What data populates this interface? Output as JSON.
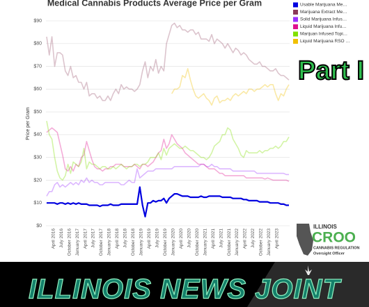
{
  "chart_data": {
    "type": "line",
    "title": "Medical Cannabis Products Average Price per Gram",
    "y_label": "Price per Gram",
    "categories": [
      null,
      null,
      "April 2016",
      null,
      null,
      "July 2016",
      null,
      null,
      "October 2016",
      null,
      null,
      "January 2017",
      null,
      null,
      "April 2017",
      null,
      null,
      "July 2017",
      null,
      null,
      "October 2017",
      null,
      null,
      "January 2018",
      null,
      null,
      "April 2018",
      null,
      null,
      "July 2018",
      null,
      null,
      "October 2018",
      null,
      null,
      "January 2019",
      null,
      null,
      "April 2019",
      null,
      null,
      "July 2019",
      null,
      null,
      "October 2019",
      null,
      null,
      "January 2020",
      null,
      null,
      "April 2020",
      null,
      null,
      "July 2020",
      null,
      null,
      "October 2020",
      null,
      null,
      "January 2021",
      null,
      null,
      "April 2021",
      null,
      null,
      "July 2021",
      null,
      null,
      "October 2021",
      null,
      null,
      "January 2022",
      null,
      null,
      "April 2022",
      null,
      null,
      "July 2022",
      null,
      null,
      "October 2022",
      null,
      null,
      "January 2023",
      null,
      null,
      "April 2023",
      null,
      null,
      null,
      null,
      null
    ],
    "series": [
      {
        "name": "Usable Marijuana Me…",
        "color": "#0000e0",
        "line_opacity": 1,
        "values": [
          10,
          10,
          10,
          10,
          9.5,
          10,
          10,
          9.5,
          10,
          9.5,
          10,
          9.5,
          10,
          9.5,
          9.5,
          9.5,
          9,
          9,
          9,
          9,
          8.5,
          9,
          9,
          9,
          9.5,
          9,
          9,
          9,
          9.5,
          9.5,
          9.5,
          9.5,
          9.5,
          9.5,
          9.5,
          17,
          9,
          4,
          10,
          10,
          11,
          10.5,
          11,
          11,
          12,
          10,
          12,
          13,
          14,
          14,
          13.5,
          13,
          13,
          13,
          12.5,
          12.5,
          12.5,
          12.5,
          13,
          12.5,
          12.5,
          13,
          13,
          13,
          13,
          13,
          12.5,
          12.5,
          12.5,
          12.5,
          12,
          12,
          12,
          12,
          11.5,
          11.5,
          11,
          11,
          11,
          11,
          10.5,
          10.5,
          10.5,
          10.5,
          10,
          10,
          10,
          10,
          9.5,
          9.5,
          9,
          9
        ]
      },
      {
        "name": "Marijuana Extract Me…",
        "color": "#8b3a5a",
        "line_opacity": 0.3,
        "values": [
          83,
          75,
          83,
          70,
          76,
          76,
          75,
          68,
          66,
          70,
          65,
          66,
          63,
          63,
          60,
          63,
          57,
          58,
          58,
          56,
          57,
          55,
          55,
          57,
          55,
          58,
          60,
          58,
          62,
          60,
          61,
          60,
          60,
          59,
          60,
          62,
          68,
          72,
          65,
          70,
          68,
          73,
          67,
          70,
          68,
          80,
          84,
          88,
          89,
          87,
          88,
          86,
          86,
          85,
          86,
          86,
          84,
          85,
          82,
          82,
          82,
          81,
          84,
          80,
          82,
          81,
          80,
          78,
          80,
          78,
          76,
          78,
          77,
          75,
          76,
          75,
          73,
          72,
          71,
          71,
          72,
          70,
          70,
          69,
          68,
          68,
          69,
          67,
          66,
          66,
          65,
          64
        ]
      },
      {
        "name": "Solid Marijuana Infus…",
        "color": "#9b30ff",
        "line_opacity": 0.35,
        "values": [
          13,
          15,
          15,
          18,
          19,
          17,
          18,
          17,
          18,
          19,
          18,
          19,
          18,
          20,
          19,
          21,
          19,
          20,
          19,
          19,
          18,
          18,
          19,
          19,
          19,
          19,
          19,
          19,
          18,
          18,
          19,
          20,
          19,
          19,
          25,
          21,
          22,
          23,
          24,
          24,
          24,
          25,
          25,
          25,
          25,
          25,
          25,
          25,
          26,
          26,
          26,
          26,
          26,
          26,
          26,
          26,
          26,
          26,
          27,
          27,
          26,
          26,
          27,
          26,
          26,
          25,
          25,
          25,
          25,
          25,
          24,
          24,
          24,
          24,
          24,
          24,
          24,
          24,
          24,
          23,
          23,
          23,
          23,
          23,
          23,
          23,
          23,
          23,
          23,
          23,
          22.5,
          22.5
        ]
      },
      {
        "name": "Liquid Marijuana Infu…",
        "color": "#e01090",
        "line_opacity": 0.35,
        "values": [
          41,
          42,
          43,
          42,
          41,
          36,
          31,
          25,
          24,
          26,
          24,
          27,
          26,
          30,
          31,
          37,
          33,
          29,
          26,
          25,
          25,
          24,
          25,
          25,
          26,
          26,
          27,
          27,
          27,
          26,
          26,
          26,
          26,
          27,
          26,
          25,
          27,
          27,
          26,
          27,
          28,
          30,
          32,
          33,
          38,
          34,
          36,
          40,
          38,
          36,
          35,
          34,
          32,
          31,
          30,
          29,
          28,
          27,
          27,
          27,
          26,
          25,
          25,
          25,
          24,
          23,
          23,
          22,
          22,
          22,
          22,
          22,
          22,
          22,
          22,
          21,
          21,
          21,
          21,
          21,
          21,
          21,
          20.5,
          21,
          20.5,
          20,
          20,
          20,
          20,
          20,
          20,
          19.5
        ]
      },
      {
        "name": "Marijuan Infused Topi…",
        "color": "#80e000",
        "line_opacity": 0.35,
        "values": [
          46,
          40,
          38,
          30,
          24,
          21,
          20,
          22,
          27,
          23,
          28,
          27,
          26,
          28,
          34,
          25,
          28,
          27,
          27,
          26,
          25,
          26,
          26,
          25,
          25,
          26,
          25,
          26,
          27,
          26,
          25,
          26,
          26,
          27,
          27,
          26,
          27,
          27,
          28,
          30,
          30,
          30,
          32,
          29,
          34,
          31,
          34,
          35,
          36,
          35,
          34,
          34,
          35,
          34,
          33,
          33,
          32,
          31,
          30,
          30,
          29,
          30,
          32,
          35,
          36,
          37,
          40,
          40,
          43,
          42,
          38,
          36,
          34,
          31,
          30,
          33,
          32,
          32,
          32,
          32,
          33,
          32,
          33,
          33,
          34,
          34,
          35,
          34,
          35,
          37,
          37,
          39
        ]
      },
      {
        "name": "Liquid Marijuana RSO …",
        "color": "#f0c000",
        "line_opacity": 0.35,
        "values": [
          null,
          null,
          null,
          null,
          null,
          null,
          null,
          null,
          null,
          null,
          null,
          null,
          null,
          null,
          null,
          null,
          null,
          null,
          null,
          null,
          null,
          null,
          null,
          null,
          null,
          null,
          null,
          null,
          null,
          null,
          null,
          null,
          null,
          null,
          null,
          null,
          null,
          null,
          null,
          null,
          null,
          null,
          null,
          null,
          null,
          null,
          null,
          58,
          60,
          60,
          61,
          66,
          65,
          69,
          64,
          60,
          57,
          56,
          57,
          58,
          56,
          55,
          53,
          56,
          57,
          54,
          55,
          55,
          56,
          55,
          57,
          58,
          57,
          58,
          59,
          58,
          60,
          60,
          59,
          60,
          60,
          61,
          62,
          61,
          62,
          62,
          58,
          55,
          58,
          57,
          60,
          62
        ]
      }
    ],
    "ylim": [
      0,
      90
    ],
    "yticks": [
      {
        "value": 0,
        "label": "$0"
      },
      {
        "value": 10,
        "label": "$10"
      },
      {
        "value": 20,
        "label": "$20"
      },
      {
        "value": 30,
        "label": "$30"
      },
      {
        "value": 40,
        "label": "$40"
      },
      {
        "value": 50,
        "label": "$50"
      },
      {
        "value": 60,
        "label": "$60"
      },
      {
        "value": 70,
        "label": "$70"
      },
      {
        "value": 80,
        "label": "$80"
      },
      {
        "value": 90,
        "label": "$90"
      }
    ],
    "grid": true,
    "legend": "top-right"
  },
  "overlay": {
    "part": "Part I",
    "logo_state": "ILLINOIS",
    "logo_name": "CROO",
    "logo_line1": "CANNABIS REGULATION",
    "logo_line2": "Oversight Officer",
    "banner": "ILLINOIS NEWS JOINT"
  }
}
